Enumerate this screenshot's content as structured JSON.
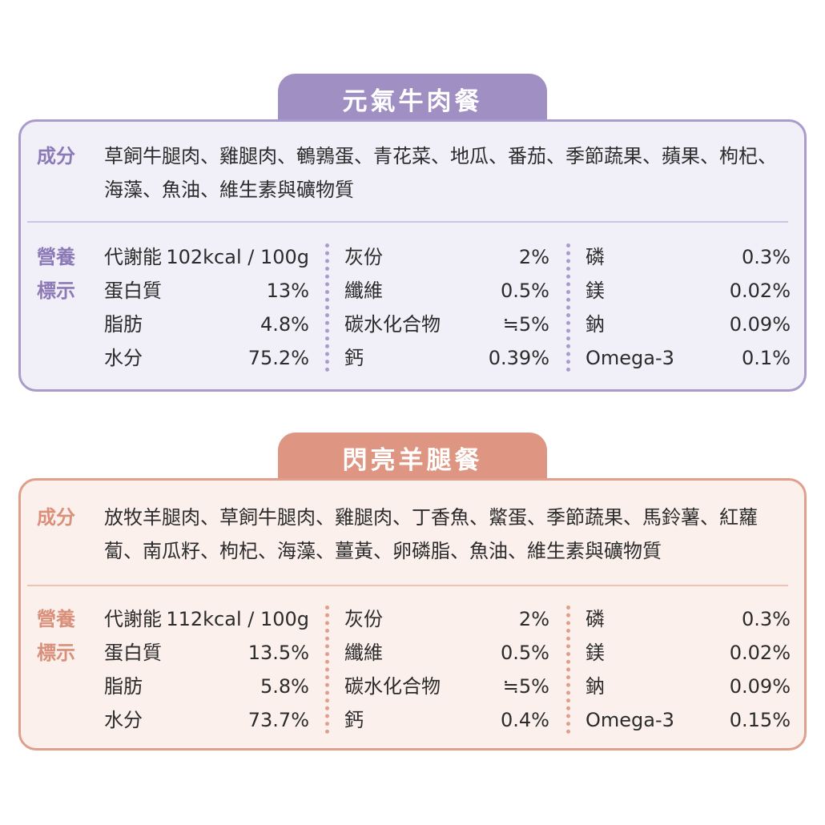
{
  "cards": [
    {
      "title": "元氣牛肉餐",
      "ingredients_label": "成分",
      "ingredients": "草飼牛腿肉、雞腿肉、鵪鶉蛋、青花菜、地瓜、番茄、季節蔬果、蘋果、枸杞、海藻、魚油、維生素與礦物質",
      "nutrition_label_line1": "營養",
      "nutrition_label_line2": "標示",
      "columns": [
        [
          {
            "name": "代謝能",
            "value": "102kcal / 100g"
          },
          {
            "name": "蛋白質",
            "value": "13%"
          },
          {
            "name": "脂肪",
            "value": "4.8%"
          },
          {
            "name": "水分",
            "value": "75.2%"
          }
        ],
        [
          {
            "name": "灰份",
            "value": "2%"
          },
          {
            "name": "纖維",
            "value": "0.5%"
          },
          {
            "name": "碳水化合物",
            "value": "≒5%"
          },
          {
            "name": "鈣",
            "value": "0.39%"
          }
        ],
        [
          {
            "name": "磷",
            "value": "0.3%"
          },
          {
            "name": "鎂",
            "value": "0.02%"
          },
          {
            "name": "鈉",
            "value": "0.09%"
          },
          {
            "name": "Omega-3",
            "value": "0.1%"
          }
        ]
      ]
    },
    {
      "title": "閃亮羊腿餐",
      "ingredients_label": "成分",
      "ingredients": "放牧羊腿肉、草飼牛腿肉、雞腿肉、丁香魚、鱉蛋、季節蔬果、馬鈴薯、紅蘿蔔、南瓜籽、枸杞、海藻、薑黃、卵磷脂、魚油、維生素與礦物質",
      "nutrition_label_line1": "營養",
      "nutrition_label_line2": "標示",
      "columns": [
        [
          {
            "name": "代謝能",
            "value": "112kcal / 100g"
          },
          {
            "name": "蛋白質",
            "value": "13.5%"
          },
          {
            "name": "脂肪",
            "value": "5.8%"
          },
          {
            "name": "水分",
            "value": "73.7%"
          }
        ],
        [
          {
            "name": "灰份",
            "value": "2%"
          },
          {
            "name": "纖維",
            "value": "0.5%"
          },
          {
            "name": "碳水化合物",
            "value": "≒5%"
          },
          {
            "name": "鈣",
            "value": "0.4%"
          }
        ],
        [
          {
            "name": "磷",
            "value": "0.3%"
          },
          {
            "name": "鎂",
            "value": "0.02%"
          },
          {
            "name": "鈉",
            "value": "0.09%"
          },
          {
            "name": "Omega-3",
            "value": "0.15%"
          }
        ]
      ]
    }
  ],
  "colors": {
    "beef_accent": "#9f8fc3",
    "beef_background": "#f1eff7",
    "lamb_accent": "#de9682",
    "lamb_background": "#fbf0ec"
  }
}
